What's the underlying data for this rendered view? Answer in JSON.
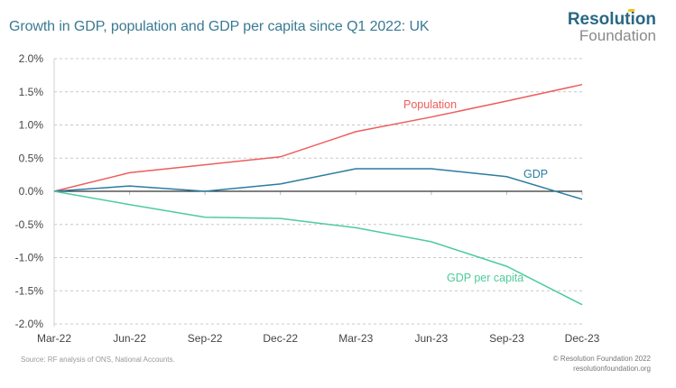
{
  "header": {
    "title": "Growth in GDP, population and GDP per capita since Q1 2022: UK",
    "logo_main": "Resolution",
    "logo_sub": "Foundation"
  },
  "footer": {
    "source": "Source: RF analysis of ONS, National Accounts.",
    "copyright": "© Resolution Foundation 2022",
    "website": "resolutionfoundation.org"
  },
  "colors": {
    "title": "#3a7a93",
    "population": "#ee5d5d",
    "gdp": "#2a7ca0",
    "gdp_per_capita": "#4ecb9c",
    "zero_line": "#333333",
    "grid": "#c8c8c8"
  },
  "chart_data": {
    "type": "line",
    "title": "Growth in GDP, population and GDP per capita since Q1 2022: UK",
    "xlabel": "",
    "ylabel": "",
    "x": [
      "Mar-22",
      "Jun-22",
      "Sep-22",
      "Dec-22",
      "Mar-23",
      "Jun-23",
      "Sep-23",
      "Dec-23"
    ],
    "ylim": [
      -2.0,
      2.0
    ],
    "yticks": [
      2.0,
      1.5,
      1.0,
      0.5,
      0.0,
      -0.5,
      -1.0,
      -1.5,
      -2.0
    ],
    "ytick_labels": [
      "2.0%",
      "1.5%",
      "1.0%",
      "0.5%",
      "0.0%",
      "-0.5%",
      "-1.0%",
      "-1.5%",
      "-2.0%"
    ],
    "grid": true,
    "grid_style": "dashed horizontal",
    "series": [
      {
        "name": "Population",
        "label": "Population",
        "values": [
          0.0,
          0.28,
          0.4,
          0.52,
          0.9,
          1.12,
          1.36,
          1.61
        ]
      },
      {
        "name": "GDP",
        "label": "GDP",
        "values": [
          0.0,
          0.08,
          0.0,
          0.11,
          0.34,
          0.34,
          0.22,
          -0.12
        ]
      },
      {
        "name": "GDP per capita",
        "label": "GDP per capita",
        "values": [
          0.0,
          -0.2,
          -0.39,
          -0.41,
          -0.55,
          -0.76,
          -1.13,
          -1.71
        ]
      }
    ],
    "legend": "inline labels"
  }
}
